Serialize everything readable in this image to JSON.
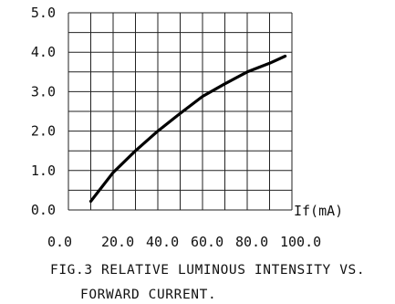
{
  "chart_data": {
    "type": "line",
    "title": "",
    "xlabel": "If(mA)",
    "ylabel": "",
    "xlim": [
      0,
      100
    ],
    "ylim": [
      0,
      5
    ],
    "x_ticks": [
      "0.0",
      "20.0",
      "40.0",
      "60.0",
      "80.0",
      "100.0"
    ],
    "y_ticks": [
      "0.0",
      "1.0",
      "2.0",
      "3.0",
      "4.0",
      "5.0"
    ],
    "grid": true,
    "series": [
      {
        "x": [
          10,
          20,
          30,
          40,
          50,
          60,
          70,
          80,
          90,
          97
        ],
        "y": [
          0.22,
          0.95,
          1.5,
          2.0,
          2.45,
          2.88,
          3.2,
          3.5,
          3.72,
          3.9
        ]
      }
    ]
  },
  "caption": {
    "line1": "FIG.3 RELATIVE LUMINOUS INTENSITY VS.",
    "line2": "FORWARD CURRENT."
  }
}
